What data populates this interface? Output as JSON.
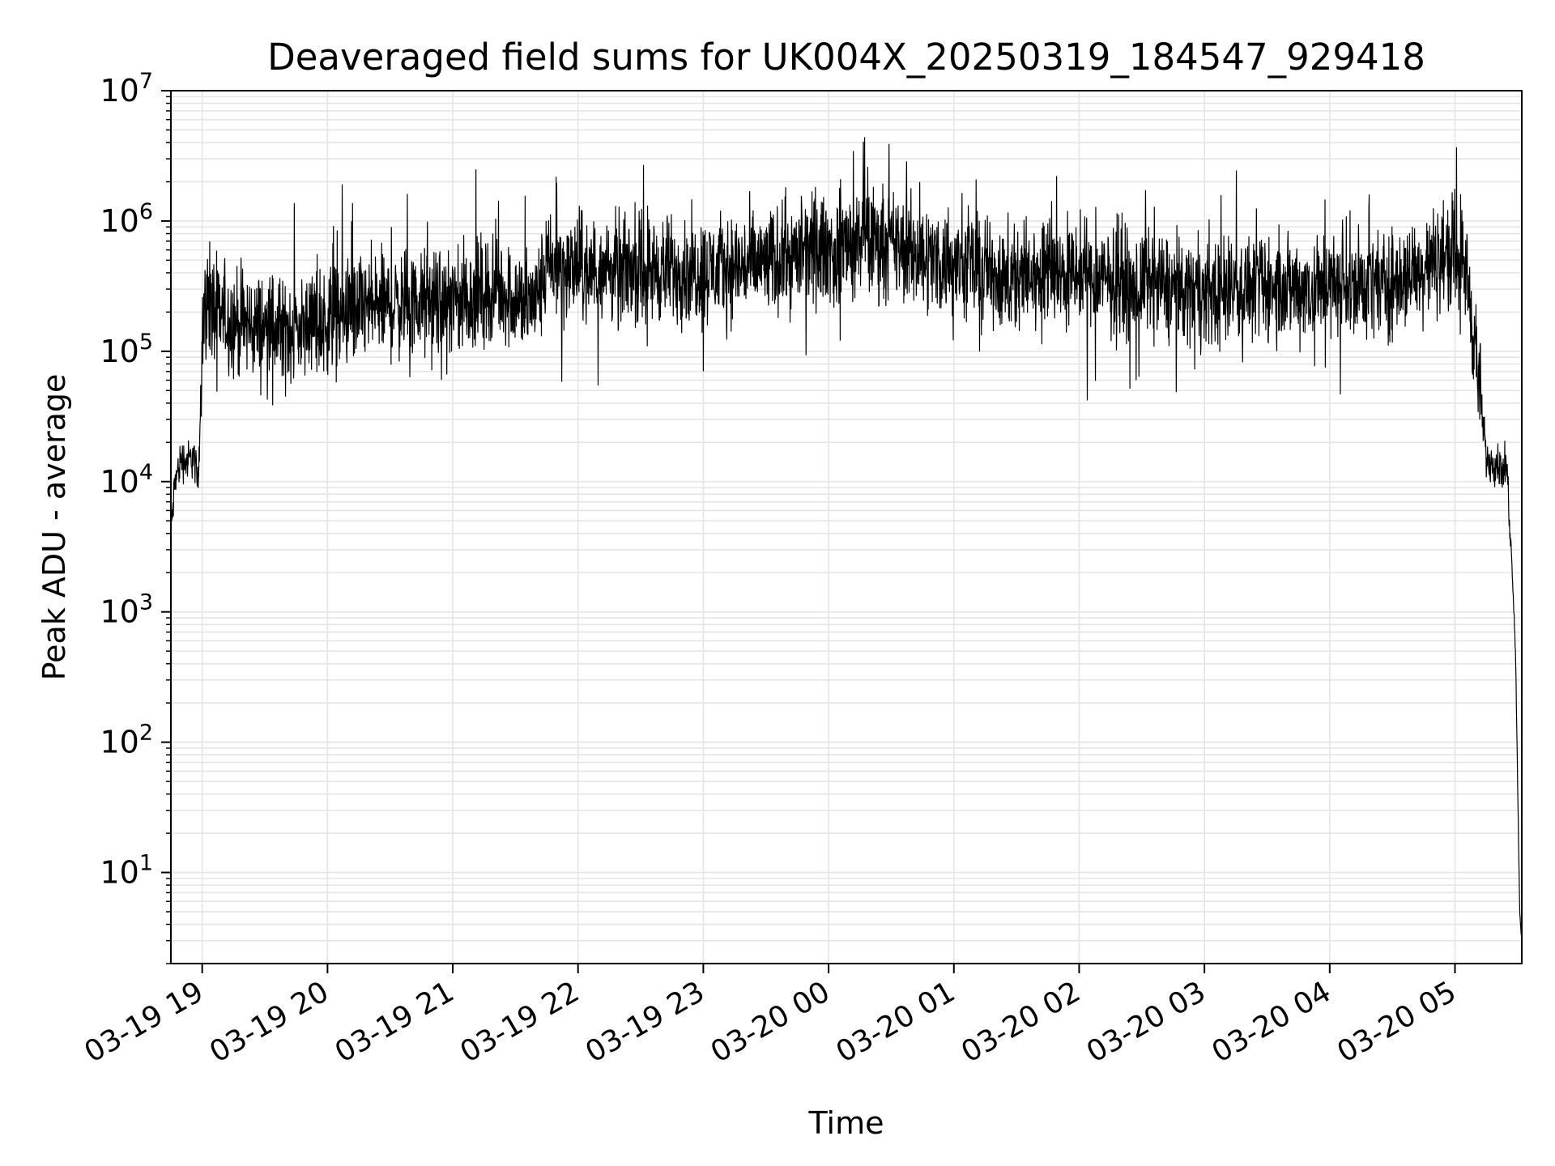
{
  "chart_data": {
    "type": "line",
    "title": "Deaveraged field sums for UK004X_20250319_184547_929418",
    "xlabel": "Time",
    "ylabel": "Peak ADU - average",
    "yscale": "log",
    "ylim": [
      2,
      10000000
    ],
    "xlim": [
      "2025-03-19 18:45",
      "2025-03-20 05:32"
    ],
    "grid": true,
    "line_color": "#000000",
    "grid_color": "#e5e5e5",
    "x_ticks": [
      {
        "t": "2025-03-19 19:00",
        "label": "03-19 19"
      },
      {
        "t": "2025-03-19 20:00",
        "label": "03-19 20"
      },
      {
        "t": "2025-03-19 21:00",
        "label": "03-19 21"
      },
      {
        "t": "2025-03-19 22:00",
        "label": "03-19 22"
      },
      {
        "t": "2025-03-19 23:00",
        "label": "03-19 23"
      },
      {
        "t": "2025-03-20 00:00",
        "label": "03-20 00"
      },
      {
        "t": "2025-03-20 01:00",
        "label": "03-20 01"
      },
      {
        "t": "2025-03-20 02:00",
        "label": "03-20 02"
      },
      {
        "t": "2025-03-20 03:00",
        "label": "03-20 03"
      },
      {
        "t": "2025-03-20 04:00",
        "label": "03-20 04"
      },
      {
        "t": "2025-03-20 05:00",
        "label": "03-20 05"
      }
    ],
    "y_ticks": [
      {
        "value": 10,
        "base": "10",
        "exp": "1"
      },
      {
        "value": 100,
        "base": "10",
        "exp": "2"
      },
      {
        "value": 1000,
        "base": "10",
        "exp": "3"
      },
      {
        "value": 10000,
        "base": "10",
        "exp": "4"
      },
      {
        "value": 100000,
        "base": "10",
        "exp": "5"
      },
      {
        "value": 1000000,
        "base": "10",
        "exp": "6"
      },
      {
        "value": 10000000,
        "base": "10",
        "exp": "7"
      }
    ],
    "series": [
      {
        "x": [
          "2025-03-19 18:45",
          "2025-03-19 18:47",
          "2025-03-19 18:50",
          "2025-03-19 18:53",
          "2025-03-19 18:56",
          "2025-03-19 18:58",
          "2025-03-19 18:59",
          "2025-03-19 19:00",
          "2025-03-19 19:02",
          "2025-03-19 19:05",
          "2025-03-19 19:15",
          "2025-03-19 19:30",
          "2025-03-19 19:45",
          "2025-03-19 20:00",
          "2025-03-19 20:10",
          "2025-03-19 20:20",
          "2025-03-19 20:40",
          "2025-03-19 21:00",
          "2025-03-19 21:20",
          "2025-03-19 21:35",
          "2025-03-19 21:40",
          "2025-03-19 21:45",
          "2025-03-19 22:00",
          "2025-03-19 22:30",
          "2025-03-19 23:00",
          "2025-03-19 23:30",
          "2025-03-20 00:00",
          "2025-03-20 00:15",
          "2025-03-20 00:30",
          "2025-03-20 01:00",
          "2025-03-20 01:30",
          "2025-03-20 02:00",
          "2025-03-20 02:30",
          "2025-03-20 03:00",
          "2025-03-20 03:30",
          "2025-03-20 04:00",
          "2025-03-20 04:30",
          "2025-03-20 05:00",
          "2025-03-20 05:05",
          "2025-03-20 05:10",
          "2025-03-20 05:15",
          "2025-03-20 05:20",
          "2025-03-20 05:25",
          "2025-03-20 05:27",
          "2025-03-20 05:29",
          "2025-03-20 05:30",
          "2025-03-20 05:31",
          "2025-03-20 05:32"
        ],
        "y": [
          4000,
          10000,
          15000,
          14000,
          16000,
          9000,
          30000,
          150000,
          230000,
          200000,
          170000,
          150000,
          150000,
          170000,
          190000,
          220000,
          230000,
          230000,
          310000,
          230000,
          250000,
          420000,
          430000,
          420000,
          420000,
          470000,
          620000,
          750000,
          650000,
          450000,
          380000,
          370000,
          320000,
          290000,
          310000,
          310000,
          330000,
          600000,
          450000,
          100000,
          15000,
          14000,
          12000,
          3000,
          500,
          50,
          5,
          3
        ]
      }
    ]
  }
}
